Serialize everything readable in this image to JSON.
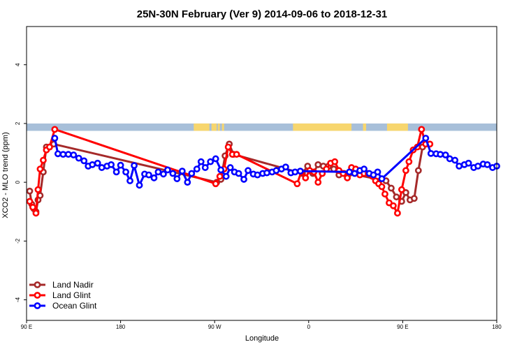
{
  "chart_data": {
    "type": "line",
    "title": "25N-30N February (Ver 9)   2014-09-06 to 2018-12-31",
    "xlabel": "Longitude",
    "ylabel": "XCO2 - MLO trend (ppm)",
    "xlim": [
      90,
      540
    ],
    "ylim": [
      -4.7,
      5.3
    ],
    "x_ticks": [
      {
        "value": 90,
        "label": "90 E"
      },
      {
        "value": 180,
        "label": "180"
      },
      {
        "value": 270,
        "label": "90 W"
      },
      {
        "value": 360,
        "label": "0"
      },
      {
        "value": 450,
        "label": "90 E"
      },
      {
        "value": 540,
        "label": "180"
      }
    ],
    "y_ticks": [
      {
        "value": -4,
        "label": "-4"
      },
      {
        "value": -2,
        "label": "-2"
      },
      {
        "value": 0,
        "label": "0"
      },
      {
        "value": 2,
        "label": "2"
      },
      {
        "value": 4,
        "label": "4"
      }
    ],
    "legend_position": "bottom-left",
    "landmask": {
      "y_range": [
        1.75,
        2.0
      ],
      "ocean_color": "#a7bfd9",
      "land_color": "#f7d66e",
      "land_segments": [
        [
          250,
          265
        ],
        [
          267,
          272
        ],
        [
          273,
          275
        ],
        [
          277,
          279
        ],
        [
          345,
          401
        ],
        [
          412,
          415
        ],
        [
          435,
          455
        ]
      ]
    },
    "series": [
      {
        "name": "Land Nadir",
        "color": "#a52a2a",
        "x": [
          93,
          95,
          97,
          99,
          101,
          103,
          106,
          109,
          112,
          116,
          272,
          276,
          280,
          284,
          288,
          354,
          359,
          364,
          369,
          374,
          379,
          384,
          389,
          394,
          399,
          434,
          439,
          444,
          449,
          453,
          457,
          461,
          465,
          469
        ],
        "y": [
          -0.3,
          -0.75,
          -0.9,
          -1.0,
          -0.6,
          -0.45,
          0.35,
          1.2,
          1.2,
          1.3,
          0.0,
          0.1,
          0.9,
          1.3,
          0.95,
          0.3,
          0.55,
          0.3,
          0.6,
          0.55,
          0.55,
          0.45,
          0.25,
          0.3,
          0.3,
          0.05,
          -0.2,
          -0.5,
          -0.65,
          -0.35,
          -0.6,
          -0.55,
          0.4,
          1.2
        ]
      },
      {
        "name": "Land Glint",
        "color": "#ff0000",
        "x": [
          93,
          96,
          99,
          101,
          103,
          106,
          109,
          112,
          117,
          271,
          275,
          279,
          283,
          287,
          291,
          349,
          353,
          357,
          361,
          365,
          369,
          373,
          377,
          381,
          385,
          389,
          393,
          397,
          401,
          405,
          409,
          413,
          417,
          421,
          424,
          427,
          430,
          433,
          437,
          441,
          445,
          449,
          453,
          456,
          460,
          464,
          468,
          472,
          476
        ],
        "y": [
          -0.65,
          -0.85,
          -1.05,
          -0.25,
          0.45,
          0.75,
          1.1,
          1.2,
          1.8,
          -0.05,
          0.2,
          0.45,
          1.2,
          0.95,
          0.95,
          -0.05,
          0.35,
          0.15,
          0.4,
          0.35,
          0.0,
          0.3,
          0.45,
          0.65,
          0.7,
          0.4,
          0.3,
          0.15,
          0.5,
          0.45,
          0.25,
          0.3,
          0.3,
          0.2,
          0.05,
          -0.05,
          -0.15,
          -0.4,
          -0.7,
          -0.8,
          -1.05,
          -0.25,
          0.4,
          0.7,
          1.1,
          1.2,
          1.8,
          1.3,
          1.3
        ]
      },
      {
        "name": "Ocean Glint",
        "color": "#0000ff",
        "x": [
          117,
          120,
          125,
          130,
          135,
          140,
          145,
          149,
          153,
          158,
          162,
          167,
          171,
          176,
          180,
          185,
          189,
          193,
          198,
          203,
          207,
          212,
          216,
          221,
          225,
          230,
          234,
          239,
          244,
          248,
          253,
          257,
          261,
          266,
          271,
          276,
          281,
          285,
          289,
          293,
          298,
          302,
          307,
          311,
          316,
          320,
          325,
          329,
          334,
          338,
          343,
          347,
          352,
          399,
          404,
          409,
          413,
          418,
          422,
          426,
          430,
          472,
          477,
          482,
          486,
          491,
          495,
          500,
          504,
          509,
          513,
          518,
          522,
          527,
          531,
          536,
          540
        ],
        "y": [
          1.5,
          0.97,
          0.95,
          0.95,
          0.93,
          0.82,
          0.73,
          0.55,
          0.6,
          0.65,
          0.5,
          0.55,
          0.6,
          0.35,
          0.58,
          0.35,
          0.05,
          0.57,
          -0.1,
          0.28,
          0.25,
          0.15,
          0.35,
          0.28,
          0.42,
          0.3,
          0.12,
          0.38,
          0.0,
          0.3,
          0.45,
          0.7,
          0.5,
          0.7,
          0.8,
          0.42,
          0.2,
          0.5,
          0.35,
          0.3,
          0.1,
          0.4,
          0.28,
          0.25,
          0.3,
          0.32,
          0.35,
          0.4,
          0.45,
          0.52,
          0.32,
          0.35,
          0.38,
          0.35,
          0.3,
          0.4,
          0.45,
          0.3,
          0.25,
          0.35,
          0.12,
          1.5,
          0.98,
          0.97,
          0.95,
          0.93,
          0.8,
          0.75,
          0.55,
          0.6,
          0.65,
          0.5,
          0.55,
          0.62,
          0.6,
          0.5,
          0.55
        ]
      }
    ]
  }
}
